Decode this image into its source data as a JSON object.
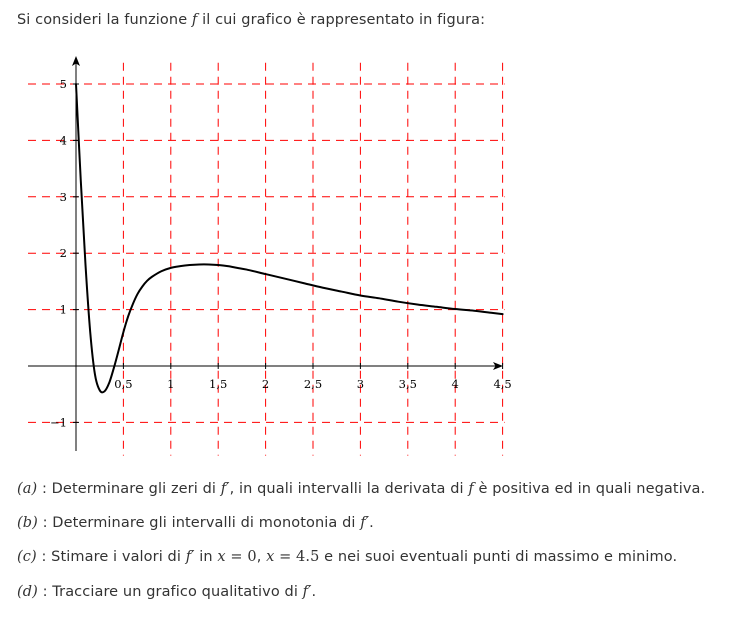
{
  "intro": {
    "text_before": "Si consideri la funzione ",
    "fn_symbol": "f",
    "text_after": " il cui grafico è rappresentato in figura:"
  },
  "chart_data": {
    "type": "line",
    "title": "",
    "xlabel": "",
    "ylabel": "",
    "xlim": [
      -0.5,
      4.5
    ],
    "ylim": [
      -1.5,
      5.5
    ],
    "grid": true,
    "grid_style": "dashed",
    "grid_color": "#ff0000",
    "curve_color": "#000000",
    "x_ticks": [
      "0,5",
      "1",
      "1,5",
      "2",
      "2,5",
      "3",
      "3,5",
      "4",
      "4,5"
    ],
    "x_tick_values": [
      0.5,
      1,
      1.5,
      2,
      2.5,
      3,
      3.5,
      4,
      4.5
    ],
    "y_ticks": [
      "−1",
      "1",
      "2",
      "3",
      "4",
      "5"
    ],
    "y_tick_values": [
      -1,
      1,
      2,
      3,
      4,
      5
    ],
    "series": [
      {
        "x": [
          0,
          0.05,
          0.1,
          0.15,
          0.2,
          0.25,
          0.3,
          0.35,
          0.4,
          0.45,
          0.5,
          0.55,
          0.6,
          0.65,
          0.7,
          0.75,
          0.8,
          0.9,
          1.0,
          1.1,
          1.2,
          1.3,
          1.4,
          1.5,
          1.6,
          1.7,
          1.8,
          2.0,
          2.2,
          2.4,
          2.6,
          2.8,
          3.0,
          3.2,
          3.4,
          3.6,
          3.8,
          4.0,
          4.2,
          4.4,
          4.5
        ],
        "y": [
          5.0,
          3.3,
          1.8,
          0.6,
          -0.15,
          -0.43,
          -0.45,
          -0.3,
          -0.03,
          0.28,
          0.6,
          0.88,
          1.1,
          1.28,
          1.41,
          1.51,
          1.58,
          1.68,
          1.74,
          1.77,
          1.79,
          1.8,
          1.8,
          1.79,
          1.77,
          1.74,
          1.71,
          1.63,
          1.55,
          1.47,
          1.39,
          1.32,
          1.25,
          1.2,
          1.14,
          1.09,
          1.05,
          1.01,
          0.98,
          0.94,
          0.92
        ]
      }
    ]
  },
  "questions": [
    {
      "label": "(a)",
      "parts": [
        {
          "t": "text",
          "v": " : Determinare gli zeri di "
        },
        {
          "t": "math",
          "v": "f′"
        },
        {
          "t": "text",
          "v": ", in quali intervalli la derivata di "
        },
        {
          "t": "math",
          "v": "f"
        },
        {
          "t": "text",
          "v": " è positiva ed in quali negativa."
        }
      ]
    },
    {
      "label": "(b)",
      "parts": [
        {
          "t": "text",
          "v": " : Determinare gli intervalli di monotonia di "
        },
        {
          "t": "math",
          "v": "f′"
        },
        {
          "t": "text",
          "v": "."
        }
      ]
    },
    {
      "label": "(c)",
      "parts": [
        {
          "t": "text",
          "v": " : Stimare i valori di "
        },
        {
          "t": "math",
          "v": "f′"
        },
        {
          "t": "text",
          "v": " in "
        },
        {
          "t": "math",
          "v": "x"
        },
        {
          "t": "mathu",
          "v": " = 0"
        },
        {
          "t": "text",
          "v": ", "
        },
        {
          "t": "math",
          "v": "x"
        },
        {
          "t": "mathu",
          "v": " = 4.5"
        },
        {
          "t": "text",
          "v": " e nei suoi eventuali punti di massimo e minimo."
        }
      ]
    },
    {
      "label": "(d)",
      "parts": [
        {
          "t": "text",
          "v": " : Tracciare un grafico qualitativo di "
        },
        {
          "t": "math",
          "v": "f′"
        },
        {
          "t": "text",
          "v": "."
        }
      ]
    }
  ]
}
